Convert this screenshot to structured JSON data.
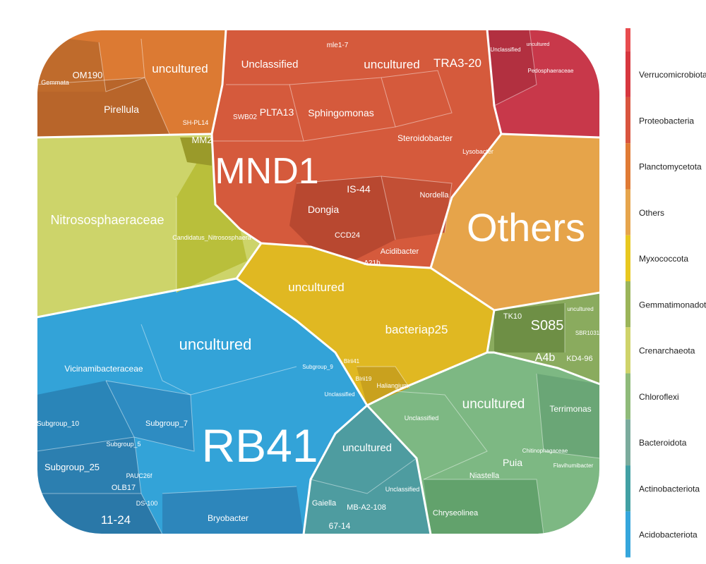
{
  "chart_data": {
    "type": "voronoi-treemap",
    "title": "",
    "legend": {
      "placement": "right",
      "entries": [
        {
          "name": "Verrucomicrobiota",
          "color": "#d7373f"
        },
        {
          "name": "Proteobacteria",
          "color": "#d9553e"
        },
        {
          "name": "Planctomycetota",
          "color": "#e07b35"
        },
        {
          "name": "Others",
          "color": "#e6a54c"
        },
        {
          "name": "Myxococcota",
          "color": "#e8c820"
        },
        {
          "name": "Gemmatimonadota",
          "color": "#9bb55a"
        },
        {
          "name": "Crenarchaeota",
          "color": "#cfd36a"
        },
        {
          "name": "Chloroflexi",
          "color": "#8fbb7a"
        },
        {
          "name": "Bacteroidota",
          "color": "#7bab9d"
        },
        {
          "name": "Actinobacteriota",
          "color": "#42a0a4"
        },
        {
          "name": "Acidobacteriota",
          "color": "#35a6dc"
        }
      ]
    },
    "groups": [
      {
        "phylum": "Proteobacteria",
        "color": "#d55a3c",
        "taxa": [
          "MND1",
          "Unclassified",
          "uncultured",
          "Sphingomonas",
          "Steroidobacter",
          "PLTA13",
          "IS-44",
          "Dongia",
          "Nordella",
          "Lysobacter",
          "Acidibacter",
          "TRA3-20",
          "mle1-7",
          "CCD24",
          "A21b",
          "SWB02"
        ]
      },
      {
        "phylum": "Planctomycetota",
        "color": "#dc7a33",
        "taxa": [
          "uncultured",
          "Pirellula",
          "OM190",
          "Gemmata",
          "SH-PL14",
          "MM2"
        ]
      },
      {
        "phylum": "Verrucomicrobiota",
        "color": "#c8384a",
        "taxa": [
          "Unclassified",
          "uncultured",
          "Pedosphaeraceae"
        ]
      },
      {
        "phylum": "Crenarchaeota",
        "color": "#cdd46a",
        "taxa": [
          "Nitrososphaeraceae",
          "Candidatus_Nitrososphaera"
        ]
      },
      {
        "phylum": "Others",
        "color": "#e6a44a",
        "taxa": [
          "Others"
        ]
      },
      {
        "phylum": "Myxococcota",
        "color": "#e0b822",
        "taxa": [
          "uncultured",
          "bacteriap25",
          "Haliangium",
          "Blrii41",
          "BIrii19"
        ]
      },
      {
        "phylum": "Gemmatimonadota",
        "color": "#8aab5e",
        "taxa": [
          "S085",
          "A4b",
          "KD4-96",
          "TK10",
          "SBR1031",
          "uncultured"
        ]
      },
      {
        "phylum": "Chloroflexi",
        "color": "#7db883",
        "taxa": [
          "uncultured",
          "Terrimonas",
          "Puia",
          "Niastella",
          "Chryseolinea",
          "Unclassified",
          "Flavihumibacter",
          "Chitinophagaceae"
        ]
      },
      {
        "phylum": "Bacteroidota",
        "color": "#4e9ca0",
        "taxa": [
          "uncultured",
          "Gaiella",
          "MB-A2-108",
          "67-14",
          "Unclassified"
        ]
      },
      {
        "phylum": "Acidobacteriota",
        "color": "#33a3d8",
        "taxa": [
          "RB41",
          "uncultured",
          "Vicinamibacteraceae",
          "Subgroup_10",
          "Subgroup_7",
          "Subgroup_5",
          "Subgroup_25",
          "OLB17",
          "11-24",
          "Bryobacter",
          "Subgroup_9",
          "Unclassified",
          "DS-100",
          "PAUC26f"
        ]
      }
    ]
  },
  "labels": {
    "mnd1": "MND1",
    "others": "Others",
    "rb41": "RB41",
    "nitroso": "Nitrososphaeraceae",
    "cand_nitroso": "Candidatus_Nitrososphaera",
    "unclassified_prot": "Unclassified",
    "uncultured_prot": "uncultured",
    "tra3": "TRA3-20",
    "mle": "mle1-7",
    "sphingo": "Sphingomonas",
    "plta": "PLTA13",
    "swb": "SWB02",
    "steroido": "Steroidobacter",
    "lyso": "Lysobacter",
    "is44": "IS-44",
    "dongia": "Dongia",
    "nordella": "Nordella",
    "acidibacter": "Acidibacter",
    "ccd24": "CCD24",
    "a21b": "A21b",
    "uncultured_plan": "uncultured",
    "pirellula": "Pirellula",
    "om190": "OM190",
    "gemmata": "Gemmata",
    "shpl": "SH-PL14",
    "mm2": "MM2",
    "verr_uncl": "Unclassified",
    "verr_unc": "uncultured",
    "pedosph": "Pedosphaeraceae",
    "myxo_unc": "uncultured",
    "bacteriap25": "bacteriap25",
    "haliangium": "Haliangium",
    "blrii41": "Blrii41",
    "birii19": "BIrii19",
    "s085": "S085",
    "a4b": "A4b",
    "kd4": "KD4-96",
    "tk10": "TK10",
    "sbr": "SBR1031",
    "gem_unc": "uncultured",
    "chl_unc": "uncultured",
    "terrimonas": "Terrimonas",
    "puia": "Puia",
    "niastella": "Niastella",
    "chryseo": "Chryseolinea",
    "chl_uncl": "Unclassified",
    "flavi": "Flavihumibacter",
    "chitino": "Chitinophagaceae",
    "bac_unc": "uncultured",
    "gaiella": "Gaiella",
    "mba2": "MB-A2-108",
    "n6714": "67-14",
    "bac_uncl": "Unclassified",
    "acid_unc": "uncultured",
    "vicina": "Vicinamibacteraceae",
    "sg10": "Subgroup_10",
    "sg7": "Subgroup_7",
    "sg5": "Subgroup_5",
    "sg25": "Subgroup_25",
    "olb17": "OLB17",
    "n1124": "11-24",
    "bryobacter": "Bryobacter",
    "sg9": "Subgroup_9",
    "acid_uncl": "Unclassified",
    "ds100": "DS-100",
    "pauc": "PAUC26f"
  }
}
